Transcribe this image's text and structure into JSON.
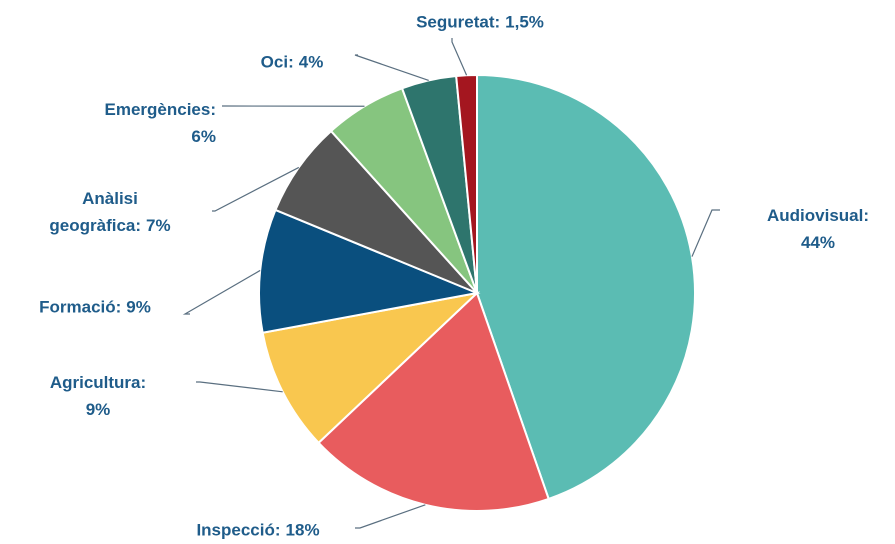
{
  "chart_data": {
    "type": "pie",
    "categories": [
      "Audiovisual:",
      "Inspecció:",
      "Agricultura:",
      "Formació:",
      "Anàlisi geogràfica:",
      "Emergències:",
      "Oci:",
      "Seguretat:"
    ],
    "values": [
      44,
      18,
      9,
      9,
      7,
      6,
      4,
      1.5
    ],
    "value_labels": [
      "44%",
      "18%",
      "9%",
      "9%",
      "7%",
      "6%",
      "4%",
      "1,5%"
    ],
    "colors": [
      "#5bbcb3",
      "#e85c5e",
      "#f9c74f",
      "#0a4f7e",
      "#555555",
      "#86c57f",
      "#2e756d",
      "#a4161f"
    ],
    "start_angle": 0,
    "direction": "clockwise"
  }
}
